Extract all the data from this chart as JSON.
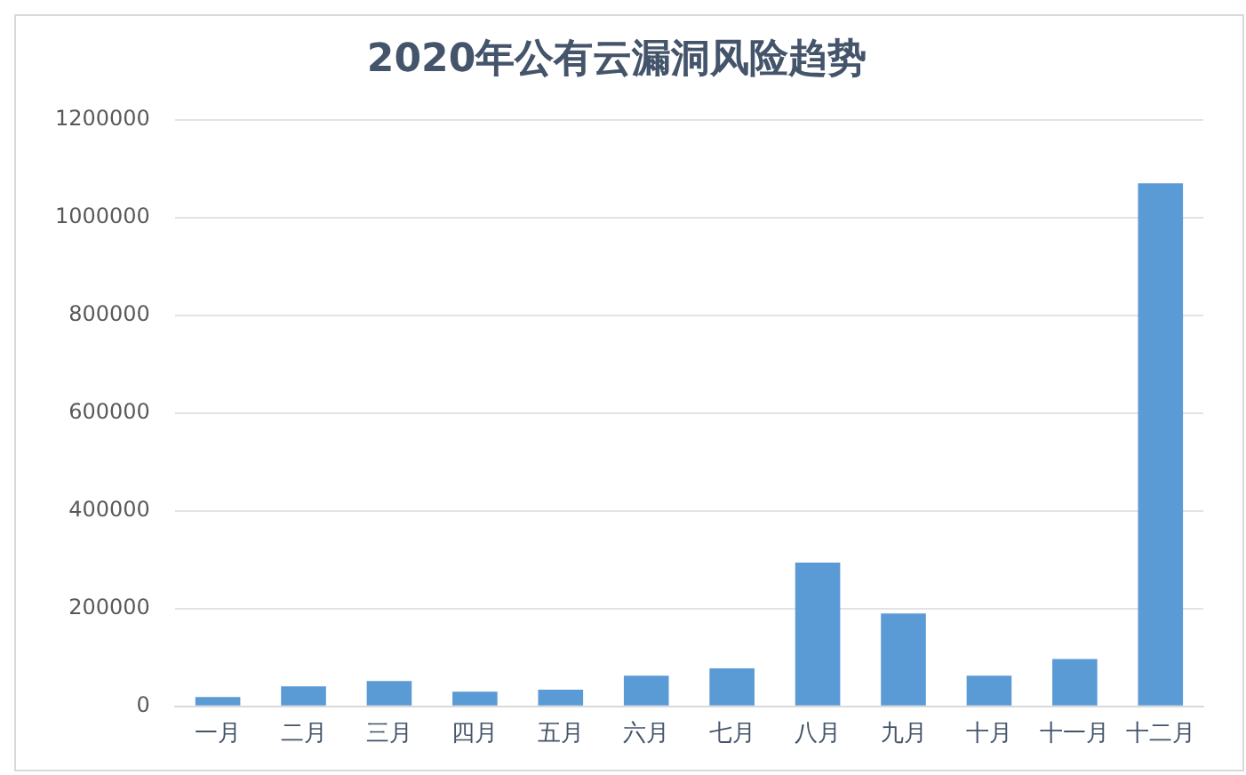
{
  "chart_data": {
    "type": "bar",
    "title": "2020年公有云漏洞风险趋势",
    "categories": [
      "一月",
      "二月",
      "三月",
      "四月",
      "五月",
      "六月",
      "七月",
      "八月",
      "九月",
      "十月",
      "十一月",
      "十二月"
    ],
    "values": [
      19000,
      41000,
      52000,
      30000,
      34000,
      63000,
      78000,
      294000,
      190000,
      63000,
      97000,
      1070000
    ],
    "color": "#5b9bd5",
    "ylim": [
      0,
      1200000
    ],
    "yticks": [
      0,
      200000,
      400000,
      600000,
      800000,
      1000000,
      1200000
    ],
    "grid": "y",
    "legend": false
  }
}
